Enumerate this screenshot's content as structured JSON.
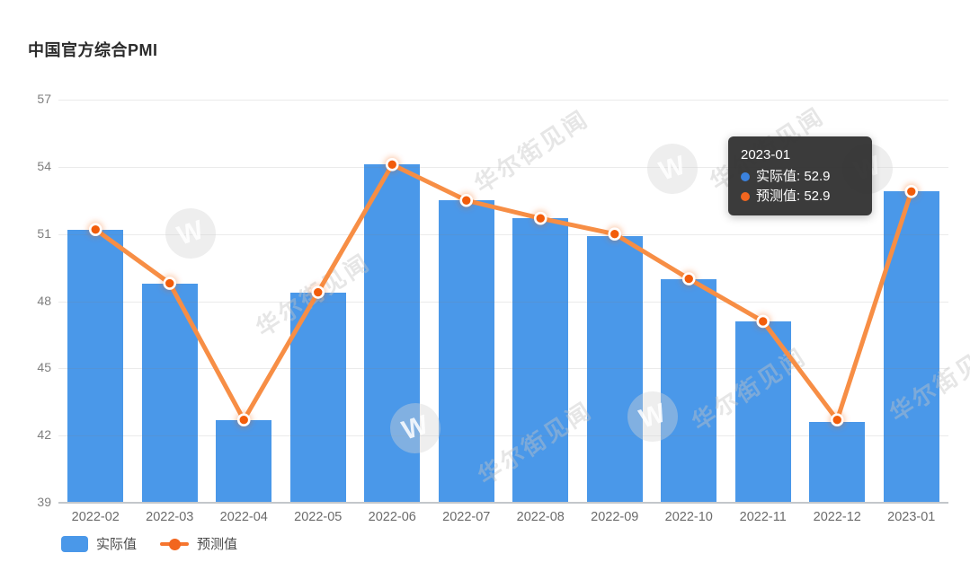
{
  "title": "中国官方综合PMI",
  "watermark": {
    "text": "华尔街见闻",
    "logo_letter": "W"
  },
  "legend": [
    {
      "label": "实际值",
      "type": "bar"
    },
    {
      "label": "预测值",
      "type": "line"
    }
  ],
  "tooltip": {
    "title": "2023-01",
    "rows": [
      {
        "label": "实际值",
        "value": "52.9",
        "text": "实际值: 52.9",
        "color": "#3b82dd"
      },
      {
        "label": "预测值",
        "value": "52.9",
        "text": "预测值: 52.9",
        "color": "#f2661f"
      }
    ]
  },
  "colors": {
    "bar": "#4a98e9",
    "line": "#f78e45",
    "dot_fill": "#f25c0a",
    "dot_ring": "#ffffff",
    "dot_glow": "rgba(242,92,10,0.32)",
    "tooltip_bg": "rgba(44,44,44,0.93)"
  },
  "chart_data": {
    "type": "bar",
    "title": "中国官方综合PMI",
    "categories": [
      "2022-02",
      "2022-03",
      "2022-04",
      "2022-05",
      "2022-06",
      "2022-07",
      "2022-08",
      "2022-09",
      "2022-10",
      "2022-11",
      "2022-12",
      "2023-01"
    ],
    "series": [
      {
        "name": "实际值",
        "type": "bar",
        "values": [
          51.2,
          48.8,
          42.7,
          48.4,
          54.1,
          52.5,
          51.7,
          50.9,
          49.0,
          47.1,
          42.6,
          52.9
        ]
      },
      {
        "name": "预测值",
        "type": "line",
        "values": [
          51.2,
          48.8,
          42.7,
          48.4,
          54.1,
          52.5,
          51.7,
          51.0,
          49.0,
          47.1,
          42.7,
          52.9
        ]
      }
    ],
    "xlabel": "",
    "ylabel": "",
    "ylim": [
      39,
      57
    ],
    "yticks": [
      57,
      54,
      51,
      48,
      45,
      42,
      39
    ],
    "grid": true,
    "legend_position": "bottom-left",
    "tooltip_point": {
      "category": "2023-01",
      "实际值": 52.9,
      "预测值": 52.9
    }
  }
}
